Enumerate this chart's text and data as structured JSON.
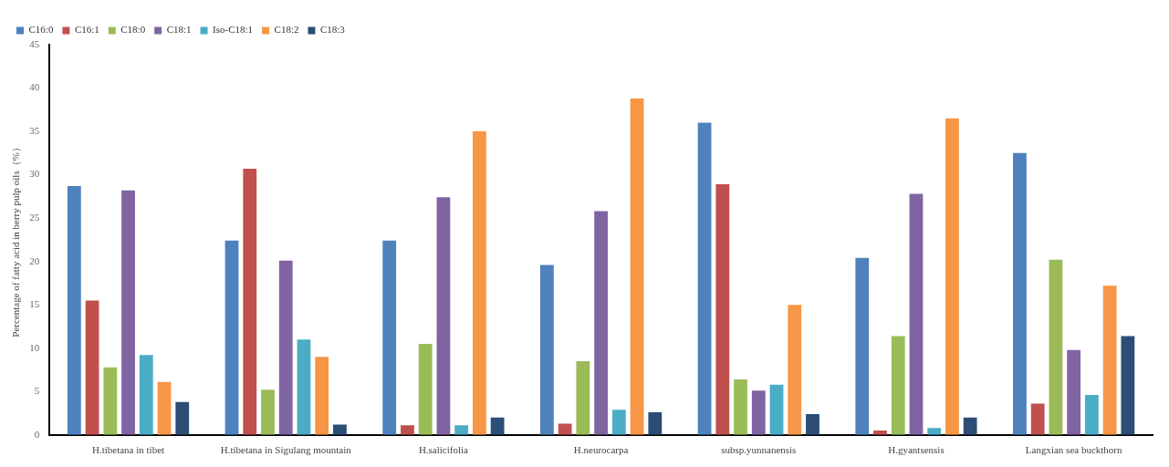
{
  "chart_data": {
    "type": "bar",
    "ylabel": "Percentage of fatty acid in berry pulp oils（%）",
    "categories": [
      "H.tibetana in tibet",
      "H.tibetana in Sigulang mountain",
      "H.salicifolia",
      "H.neurocarpa",
      "subsp.yunnanensis",
      "H.gyantsensis",
      "Langxian sea buckthorn"
    ],
    "series": [
      {
        "name": "C16:0",
        "color": "#4f81bd",
        "values": [
          28.7,
          22.4,
          22.4,
          19.6,
          36.0,
          20.4,
          32.5
        ]
      },
      {
        "name": "C16:1",
        "color": "#c0504d",
        "values": [
          15.5,
          30.7,
          1.1,
          1.3,
          28.9,
          0.5,
          3.6
        ]
      },
      {
        "name": "C18:0",
        "color": "#9bbb59",
        "values": [
          7.8,
          5.2,
          10.5,
          8.5,
          6.4,
          11.4,
          20.2
        ]
      },
      {
        "name": "C18:1",
        "color": "#8064a2",
        "values": [
          28.2,
          20.1,
          27.4,
          25.8,
          5.1,
          27.8,
          9.8
        ]
      },
      {
        "name": "Iso-C18:1",
        "color": "#4bacc6",
        "values": [
          9.2,
          11.0,
          1.1,
          2.9,
          5.8,
          0.8,
          4.6
        ]
      },
      {
        "name": "C18:2",
        "color": "#f79646",
        "values": [
          6.1,
          9.0,
          35.0,
          38.8,
          15.0,
          36.5,
          17.2
        ]
      },
      {
        "name": "C18:3",
        "color": "#2c4d75",
        "values": [
          3.8,
          1.2,
          2.0,
          2.6,
          2.4,
          2.0,
          11.4
        ]
      }
    ],
    "ylim": [
      0,
      45
    ],
    "yticks": [
      0,
      5,
      10,
      15,
      20,
      25,
      30,
      35,
      40,
      45
    ],
    "grid": false,
    "legend": "top left"
  }
}
